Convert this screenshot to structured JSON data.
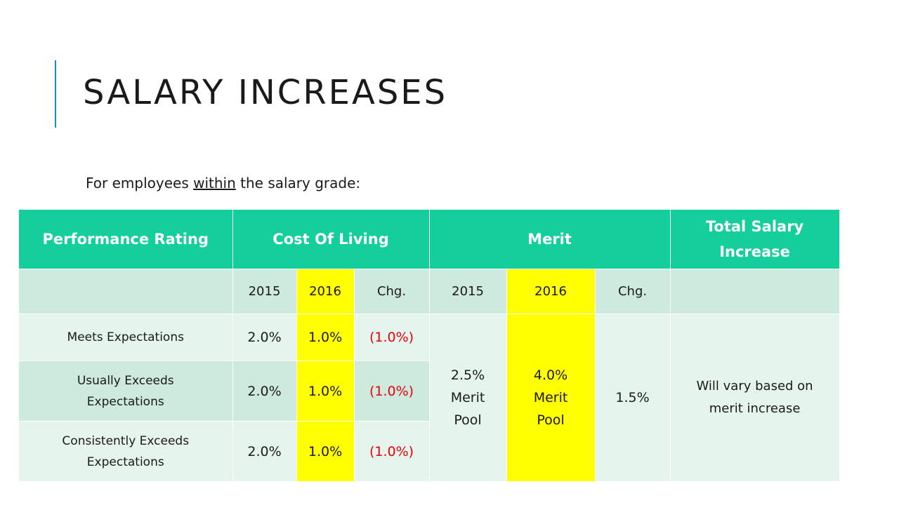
{
  "title": "SALARY INCREASES",
  "subtitle": {
    "before": "For employees ",
    "emphasis": "within",
    "after": " the salary grade:"
  },
  "colors": {
    "accent": "#1a8fb4",
    "header": "#14cf9b",
    "row_dark": "#cdeadc",
    "row_light": "#e5f4ec",
    "highlight": "#ffff00",
    "negative": "#e8000b"
  },
  "table": {
    "headers": [
      "Performance Rating",
      "Cost Of Living",
      "Merit",
      "Total Salary Increase"
    ],
    "subheaders": [
      "",
      "2015",
      "2016",
      "Chg.",
      "2015",
      "2016",
      "Chg.",
      ""
    ],
    "rows": [
      {
        "rating": "Meets Expectations",
        "col_2015": "2.0%",
        "col_2016": "1.0%",
        "chg": "(1.0%)"
      },
      {
        "rating": "Usually Exceeds Expectations",
        "col_2015": "2.0%",
        "col_2016": "1.0%",
        "chg": "(1.0%)"
      },
      {
        "rating": "Consistently Exceeds Expectations",
        "col_2015": "2.0%",
        "col_2016": "1.0%",
        "chg": "(1.0%)"
      }
    ],
    "merit": {
      "pool_2015": "2.5% Merit Pool",
      "pool_2016": "4.0% Merit Pool",
      "chg": "1.5%"
    },
    "total": "Will vary based on merit increase"
  }
}
